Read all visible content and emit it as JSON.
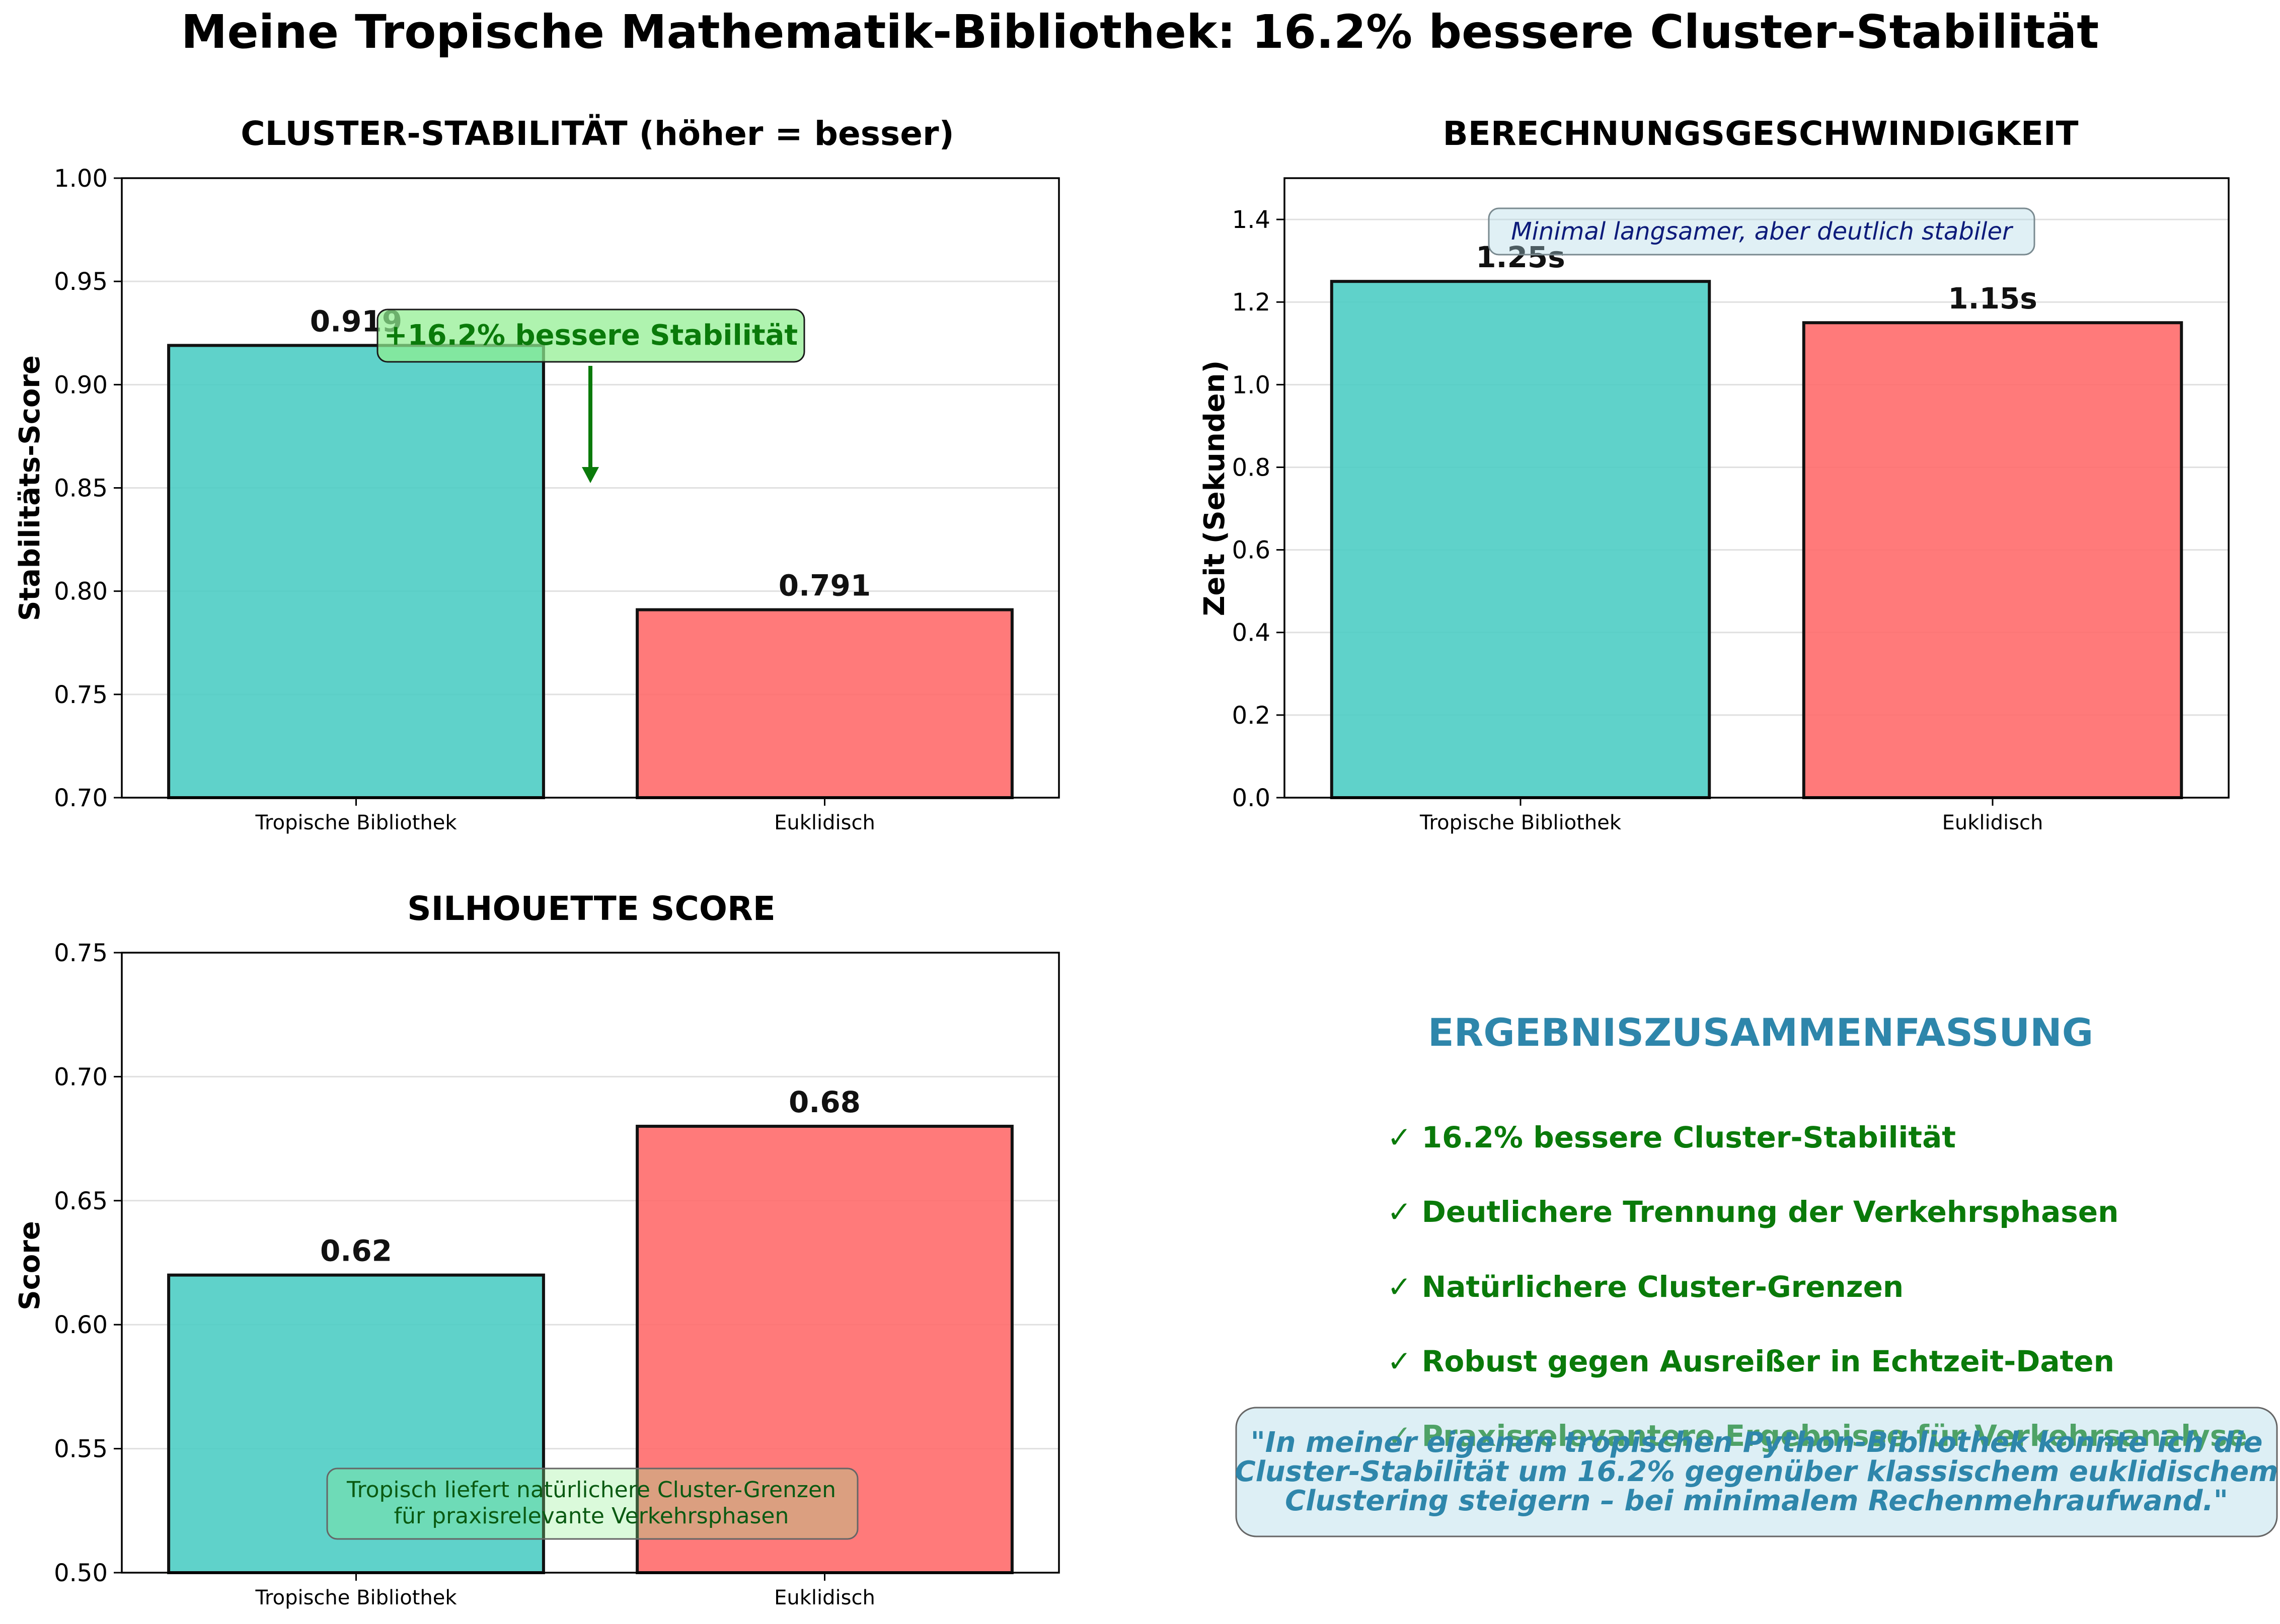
{
  "suptitle": "Meine Tropische Mathematik-Bibliothek: 16.2% bessere Cluster-Stabilität",
  "colors": {
    "tropical": "#4ecdc4",
    "euclidean": "#ff6b6b",
    "accent_green": "#0a7a0a",
    "accent_blue": "#2e86ab"
  },
  "chart_data": [
    {
      "type": "bar",
      "title": "CLUSTER-STABILITÄT (höher = besser)",
      "ylabel": "Stabilitäts-Score",
      "categories": [
        "Tropische Bibliothek",
        "Euklidisch"
      ],
      "values": [
        0.919,
        0.791
      ],
      "value_labels": [
        "0.919",
        "0.791"
      ],
      "ylim": [
        0.7,
        1.0
      ],
      "yticks": [
        "0.70",
        "0.75",
        "0.80",
        "0.85",
        "0.90",
        "0.95",
        "1.00"
      ],
      "ytick_values": [
        0.7,
        0.75,
        0.8,
        0.85,
        0.9,
        0.95,
        1.0
      ],
      "grid": true,
      "annotation": "+16.2% bessere Stabilität"
    },
    {
      "type": "bar",
      "title": "BERECHNUNGSGESCHWINDIGKEIT",
      "ylabel": "Zeit (Sekunden)",
      "categories": [
        "Tropische Bibliothek",
        "Euklidisch"
      ],
      "values": [
        1.25,
        1.15
      ],
      "value_labels": [
        "1.25s",
        "1.15s"
      ],
      "ylim": [
        0,
        1.5
      ],
      "yticks": [
        "0.0",
        "0.2",
        "0.4",
        "0.6",
        "0.8",
        "1.0",
        "1.2",
        "1.4"
      ],
      "ytick_values": [
        0,
        0.2,
        0.4,
        0.6,
        0.8,
        1.0,
        1.2,
        1.4
      ],
      "grid": true,
      "annotation": "Minimal langsamer, aber deutlich stabiler"
    },
    {
      "type": "bar",
      "title": "SILHOUETTE SCORE",
      "ylabel": "Score",
      "categories": [
        "Tropische Bibliothek",
        "Euklidisch"
      ],
      "values": [
        0.62,
        0.68
      ],
      "value_labels": [
        "0.62",
        "0.68"
      ],
      "ylim": [
        0.5,
        0.75
      ],
      "yticks": [
        "0.50",
        "0.55",
        "0.60",
        "0.65",
        "0.70",
        "0.75"
      ],
      "ytick_values": [
        0.5,
        0.55,
        0.6,
        0.65,
        0.7,
        0.75
      ],
      "grid": true,
      "annotation_lines": [
        "Tropisch liefert natürlichere Cluster-Grenzen",
        "für praxisrelevante Verkehrsphasen"
      ]
    }
  ],
  "summary": {
    "title": "ERGEBNISZUSAMMENFASSUNG",
    "items": [
      "✓ 16.2% bessere Cluster-Stabilität",
      "✓ Deutlichere Trennung der Verkehrsphasen",
      "✓ Natürlichere Cluster-Grenzen",
      "✓ Robust gegen Ausreißer in Echtzeit-Daten",
      "✓ Praxisrelevantere Ergebnisse für Verkehrsanalyse"
    ],
    "quote_lines": [
      "\"In meiner eigenen tropischen Python-Bibliothek konnte ich die",
      "Cluster-Stabilität um 16.2% gegenüber klassischem euklidischem",
      "Clustering steigern – bei minimalem Rechenmehraufwand.\""
    ]
  }
}
